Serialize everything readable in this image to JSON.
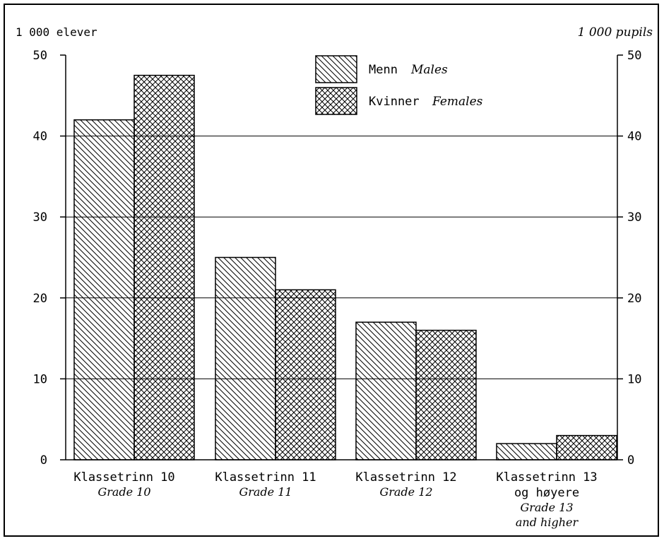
{
  "chart_data": {
    "type": "bar",
    "y_unit_left": "1 000 elever",
    "y_unit_right": "1 000 pupils",
    "ylim": [
      0,
      50
    ],
    "yticks": [
      0,
      10,
      20,
      30,
      40,
      50
    ],
    "grid": true,
    "legend_position": "top-center",
    "categories": [
      {
        "label": "Klassetrinn 10",
        "sub": [
          "Grade 10"
        ]
      },
      {
        "label": "Klassetrinn 11",
        "sub": [
          "Grade 11"
        ]
      },
      {
        "label": "Klassetrinn 12",
        "sub": [
          "Grade 12"
        ]
      },
      {
        "label": "Klassetrinn 13",
        "label2": "og høyere",
        "sub": [
          "Grade 13",
          "and higher"
        ]
      }
    ],
    "series": [
      {
        "name": "Menn",
        "name_en": "Males",
        "pattern": "diagonal-hatch",
        "values": [
          42,
          25,
          17,
          2
        ]
      },
      {
        "name": "Kvinner",
        "name_en": "Females",
        "pattern": "cross-hatch",
        "values": [
          47.5,
          21,
          16,
          3
        ]
      }
    ]
  }
}
